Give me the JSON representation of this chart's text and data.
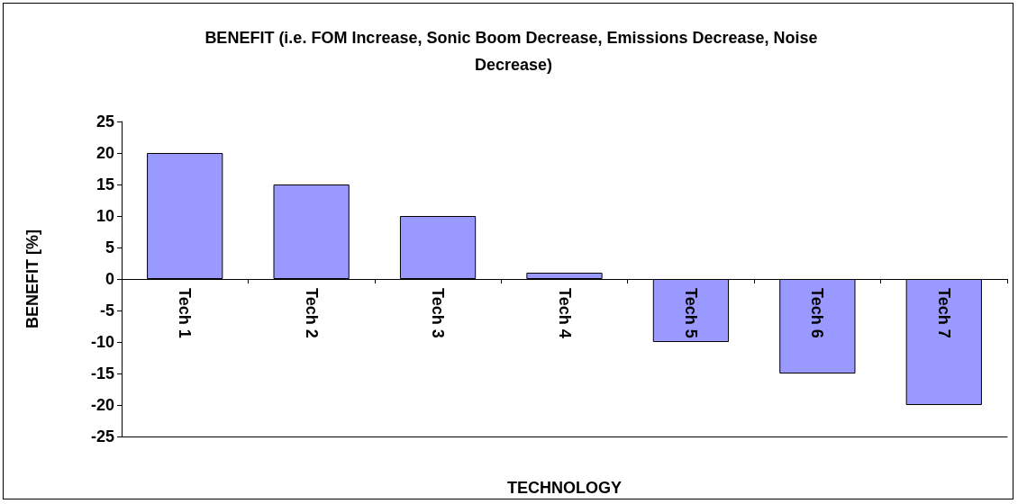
{
  "chart_data": {
    "type": "bar",
    "title": "BENEFIT (i.e. FOM Increase, Sonic Boom Decrease, Emissions Decrease, Noise Decrease)",
    "xlabel": "TECHNOLOGY",
    "ylabel": "BENEFIT [%]",
    "categories": [
      "Tech 1",
      "Tech 2",
      "Tech 3",
      "Tech 4",
      "Tech 5",
      "Tech 6",
      "Tech 7"
    ],
    "values": [
      20,
      15,
      10,
      1,
      -10,
      -15,
      -20
    ],
    "color": "#9999ff",
    "ylim": [
      -25,
      25
    ],
    "yticks": [
      -25,
      -20,
      -15,
      -10,
      -5,
      0,
      5,
      10,
      15,
      20,
      25
    ]
  }
}
